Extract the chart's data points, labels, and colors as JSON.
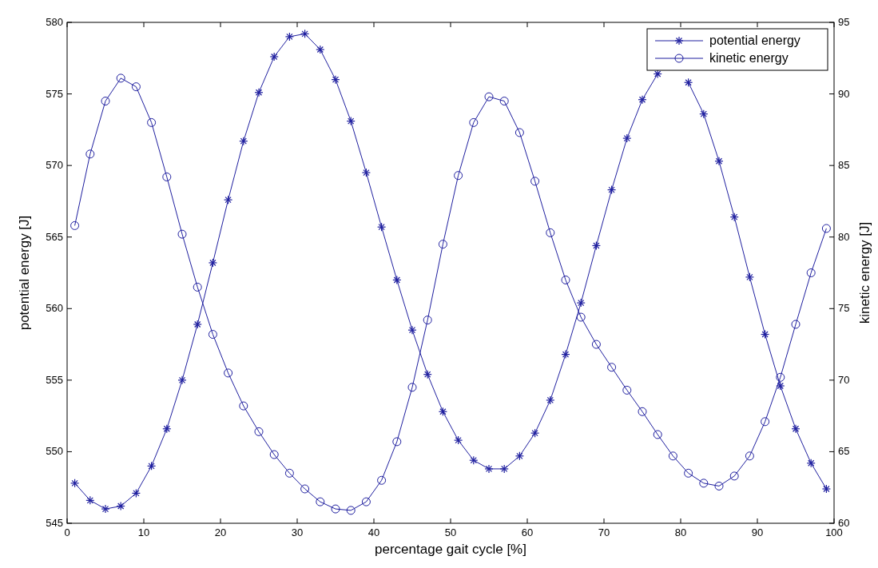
{
  "chart_data": {
    "type": "line",
    "xlabel": "percentage gait cycle [%]",
    "ylabel": "potential energy [J]",
    "y2label": "kinetic energy [J]",
    "x": [
      1,
      3,
      5,
      7,
      9,
      11,
      13,
      15,
      17,
      19,
      21,
      23,
      25,
      27,
      29,
      31,
      33,
      35,
      37,
      39,
      41,
      43,
      45,
      47,
      49,
      51,
      53,
      55,
      57,
      59,
      61,
      63,
      65,
      67,
      69,
      71,
      73,
      75,
      77,
      79,
      81,
      83,
      85,
      87,
      89,
      91,
      93,
      95,
      97,
      99
    ],
    "series": [
      {
        "name": "potential energy",
        "color": "#1f1f9f",
        "marker": "cross",
        "values": [
          547.8,
          546.6,
          546.0,
          546.2,
          547.1,
          549.0,
          551.6,
          555.0,
          558.9,
          563.2,
          567.6,
          571.7,
          575.1,
          577.6,
          579.0,
          579.2,
          578.1,
          576.0,
          573.1,
          569.5,
          565.7,
          562.0,
          558.5,
          555.4,
          552.8,
          550.8,
          549.4,
          548.8,
          548.8,
          549.7,
          551.3,
          553.6,
          556.8,
          560.4,
          564.4,
          568.3,
          571.9,
          574.6,
          576.4,
          null,
          575.8,
          573.6,
          570.3,
          566.4,
          562.2,
          558.2,
          554.6,
          551.6,
          549.2,
          547.4
        ]
      },
      {
        "name": "kinetic energy",
        "color": "#1f1f9f",
        "marker": "circle",
        "axis": "y2",
        "values": [
          80.8,
          85.8,
          89.5,
          91.1,
          90.5,
          88.0,
          84.2,
          80.2,
          76.5,
          73.2,
          70.5,
          68.2,
          66.4,
          64.8,
          63.5,
          62.4,
          61.5,
          61.0,
          60.9,
          61.5,
          63.0,
          65.7,
          69.5,
          74.2,
          79.5,
          84.3,
          88.0,
          89.8,
          89.5,
          87.3,
          83.9,
          80.3,
          77.0,
          74.4,
          72.5,
          70.9,
          69.3,
          67.8,
          66.2,
          64.7,
          63.5,
          62.8,
          62.6,
          63.3,
          64.7,
          67.1,
          70.2,
          73.9,
          77.5,
          80.6
        ]
      }
    ],
    "xlim": [
      0,
      100
    ],
    "xticks": [
      0,
      10,
      20,
      30,
      40,
      50,
      60,
      70,
      80,
      90,
      100
    ],
    "ylim": [
      545,
      580
    ],
    "yticks": [
      545,
      550,
      555,
      560,
      565,
      570,
      575,
      580
    ],
    "y2lim": [
      60,
      95
    ],
    "y2ticks": [
      60,
      65,
      70,
      75,
      80,
      85,
      90,
      95
    ],
    "grid": false,
    "legend": "top right",
    "line_style": "solid"
  }
}
